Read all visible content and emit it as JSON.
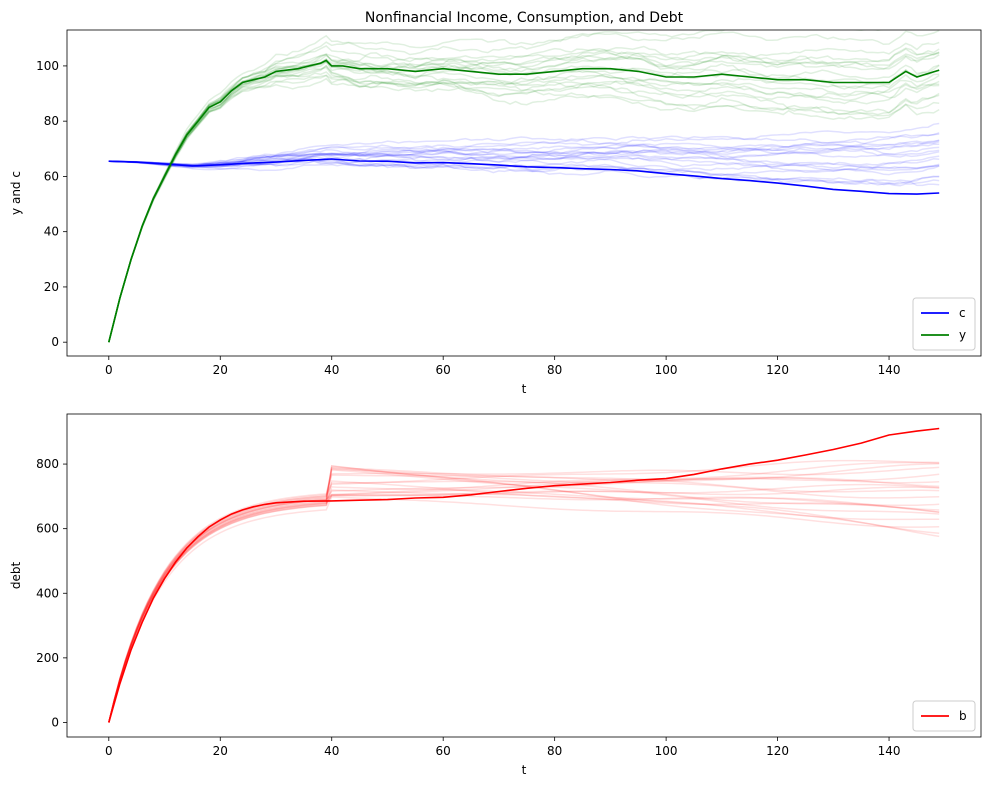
{
  "chart_data": [
    {
      "type": "line",
      "title": "Nonfinancial Income, Consumption, and Debt",
      "xlabel": "t",
      "ylabel": "y and c",
      "xlim": [
        -7.5,
        156.5
      ],
      "ylim": [
        -5,
        113
      ],
      "xticks": [
        0,
        20,
        40,
        60,
        80,
        100,
        120,
        140
      ],
      "yticks": [
        0,
        20,
        40,
        60,
        80,
        100
      ],
      "legend": {
        "placement": "lower-right",
        "entries": [
          "c",
          "y"
        ]
      },
      "series": [
        {
          "name": "c",
          "color": "#0000ff",
          "x": [
            0,
            5,
            10,
            15,
            20,
            25,
            30,
            35,
            40,
            45,
            50,
            55,
            60,
            65,
            70,
            75,
            80,
            85,
            90,
            95,
            100,
            105,
            110,
            115,
            120,
            125,
            130,
            135,
            140,
            145,
            149
          ],
          "values": [
            65.5,
            65.2,
            64.5,
            63.8,
            64.2,
            64.8,
            65.2,
            65.8,
            66.3,
            65.6,
            65.5,
            64.9,
            65.0,
            64.6,
            64.1,
            63.5,
            63.2,
            62.8,
            62.5,
            62.0,
            61.0,
            60.2,
            59.2,
            58.5,
            57.6,
            56.5,
            55.3,
            54.6,
            53.8,
            53.6,
            54.0
          ]
        },
        {
          "name": "y",
          "color": "#008000",
          "x": [
            0,
            2,
            4,
            6,
            8,
            10,
            12,
            14,
            16,
            18,
            20,
            22,
            24,
            26,
            28,
            30,
            32,
            34,
            36,
            38,
            39,
            40,
            42,
            45,
            50,
            55,
            60,
            65,
            70,
            75,
            80,
            85,
            90,
            95,
            100,
            105,
            110,
            115,
            120,
            125,
            130,
            135,
            140,
            143,
            145,
            149
          ],
          "values": [
            0,
            16,
            30,
            42,
            52,
            60,
            68,
            75,
            80,
            85,
            87,
            91,
            94,
            95,
            96,
            98,
            98.5,
            99,
            100,
            101,
            102,
            100,
            100,
            99,
            99,
            98,
            99,
            98,
            97,
            97,
            98,
            99,
            99,
            98,
            96,
            96,
            97,
            96,
            95,
            95,
            94,
            94,
            94,
            98,
            96,
            98.5
          ]
        }
      ],
      "background_series": {
        "c_paths": 20,
        "y_paths": 20,
        "c_color": "#0000ff",
        "y_color": "#008000",
        "c_spread_at_end": [
          60,
          74
        ],
        "y_spread_at_end": [
          90,
          108
        ]
      }
    },
    {
      "type": "line",
      "title": "",
      "xlabel": "t",
      "ylabel": "debt",
      "xlim": [
        -7.5,
        156.5
      ],
      "ylim": [
        -45,
        955
      ],
      "xticks": [
        0,
        20,
        40,
        60,
        80,
        100,
        120,
        140
      ],
      "yticks": [
        0,
        200,
        400,
        600,
        800
      ],
      "legend": {
        "placement": "lower-right",
        "entries": [
          "b"
        ]
      },
      "series": [
        {
          "name": "b",
          "color": "#ff0000",
          "x": [
            0,
            2,
            4,
            6,
            8,
            10,
            12,
            14,
            16,
            18,
            20,
            22,
            24,
            26,
            28,
            30,
            35,
            40,
            45,
            50,
            55,
            60,
            65,
            70,
            75,
            80,
            85,
            90,
            95,
            100,
            105,
            110,
            115,
            120,
            125,
            130,
            135,
            140,
            145,
            149
          ],
          "values": [
            0,
            120,
            225,
            310,
            385,
            445,
            497,
            540,
            575,
            605,
            627,
            645,
            658,
            668,
            675,
            680,
            685,
            686,
            688,
            690,
            695,
            697,
            705,
            715,
            725,
            733,
            738,
            743,
            750,
            755,
            768,
            785,
            800,
            812,
            828,
            845,
            865,
            890,
            902,
            910
          ]
        }
      ],
      "background_series": {
        "b_paths": 20,
        "b_color": "#ff0000",
        "b_spread_at_end": [
          585,
          815
        ]
      }
    }
  ]
}
